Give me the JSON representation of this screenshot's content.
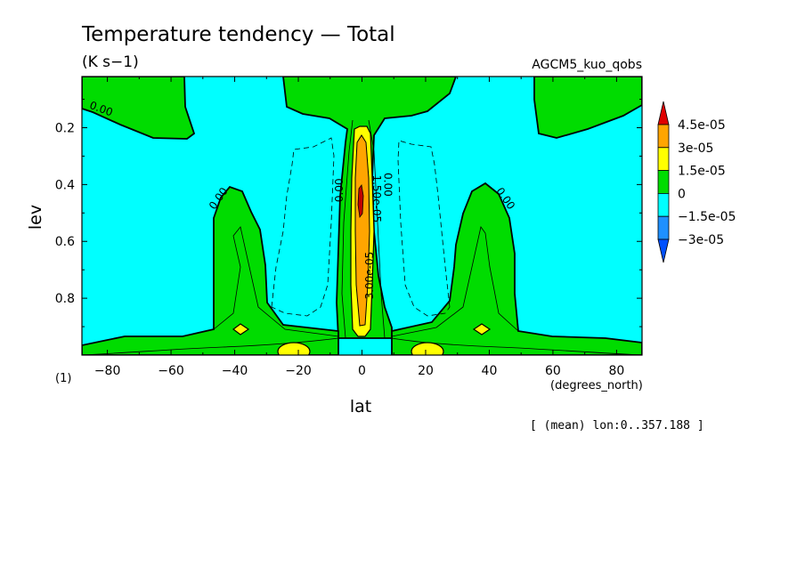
{
  "chart_data": {
    "type": "contour",
    "title": "Temperature tendency — Total",
    "units": "(K s−1)",
    "dataset": "AGCM5_kuo_qobs",
    "xlabel": "lat",
    "xunits": "(degrees_north)",
    "ylabel": "lev",
    "yunits": "(1)",
    "xlim": [
      -88,
      88
    ],
    "ylim": [
      1.0,
      0.02
    ],
    "x_ticks": [
      -80,
      -60,
      -40,
      -20,
      0,
      20,
      40,
      60,
      80
    ],
    "x_tick_labels": [
      "−80",
      "−60",
      "−40",
      "−20",
      "0",
      "20",
      "40",
      "60",
      "80"
    ],
    "y_ticks": [
      0.2,
      0.4,
      0.6,
      0.8
    ],
    "y_tick_labels": [
      "0.2",
      "0.4",
      "0.6",
      "0.8"
    ],
    "subset_note": "[ (mean) lon:0..357.188 ]",
    "contour_labels": [
      {
        "text": "0.00",
        "lat": -82,
        "lev": 0.135,
        "rotate": 20
      },
      {
        "text": "0.00",
        "lat": -45,
        "lev": 0.45,
        "rotate": -55
      },
      {
        "text": "0.00",
        "lat": -7,
        "lev": 0.42,
        "rotate": -90
      },
      {
        "text": "0.00",
        "lat": 8,
        "lev": 0.4,
        "rotate": 90
      },
      {
        "text": "0.00",
        "lat": 45,
        "lev": 0.45,
        "rotate": 55
      },
      {
        "text": "1.50e-05",
        "lat": 4.5,
        "lev": 0.45,
        "rotate": 90
      },
      {
        "text": "3.00e-05",
        "lat": 2.5,
        "lev": 0.72,
        "rotate": -90
      }
    ],
    "colorbar": {
      "levels": [
        "4.5e-05",
        "3e-05",
        "1.5e-05",
        "0",
        "−1.5e-05",
        "−3e-05"
      ],
      "colors": [
        "#e00000",
        "#ffa500",
        "#ffff00",
        "#00dc00",
        "#00ffff",
        "#1e90ff",
        "#0050ff"
      ]
    },
    "colors": {
      "neg1": "#00ffff",
      "pos0": "#00dc00",
      "pos1": "#ffff00",
      "pos2": "#ffa500",
      "pos3": "#e00000"
    }
  }
}
